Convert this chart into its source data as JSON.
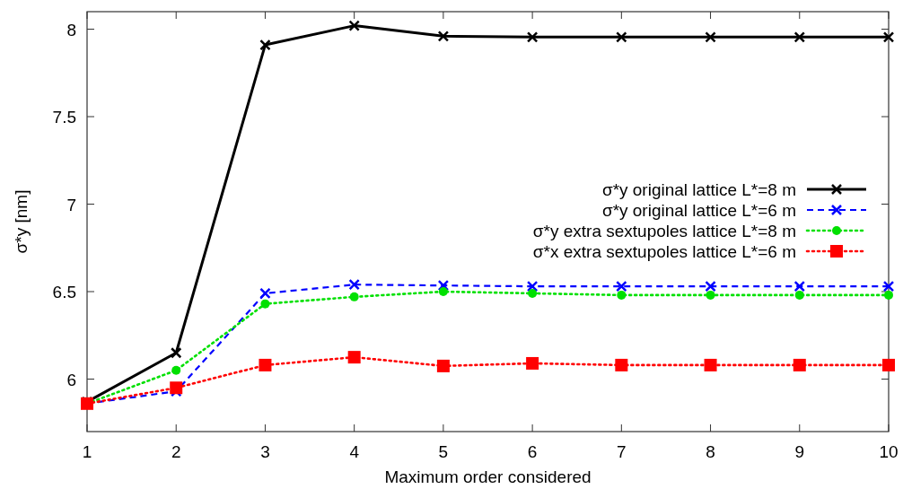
{
  "chart_data": {
    "type": "line",
    "xlabel": "Maximum order considered",
    "ylabel": "σ*y  [nm]",
    "x": [
      1,
      2,
      3,
      4,
      5,
      6,
      7,
      8,
      9,
      10
    ],
    "xlim": [
      1,
      10
    ],
    "xticks": [
      1,
      2,
      3,
      4,
      5,
      6,
      7,
      8,
      9,
      10
    ],
    "ylim": [
      5.7,
      8.1
    ],
    "yticks": [
      6,
      6.5,
      7,
      7.5,
      8
    ],
    "grid": false,
    "legend": "right",
    "series": [
      {
        "name": "σ*y original lattice L*=8 m",
        "color": "#000000",
        "marker": "cross",
        "line_style": "solid",
        "values": [
          5.87,
          6.15,
          7.91,
          8.02,
          7.96,
          7.955,
          7.955,
          7.955,
          7.955,
          7.955
        ]
      },
      {
        "name": "σ*y original lattice L*=6 m",
        "color": "#0000ff",
        "marker": "cross",
        "line_style": "dashed",
        "values": [
          5.86,
          5.93,
          6.49,
          6.54,
          6.535,
          6.53,
          6.53,
          6.53,
          6.53,
          6.53
        ]
      },
      {
        "name": "σ*y extra sextupoles lattice L*=8 m",
        "color": "#00e000",
        "marker": "circle",
        "line_style": "dotted",
        "values": [
          5.86,
          6.05,
          6.43,
          6.47,
          6.5,
          6.49,
          6.48,
          6.48,
          6.48,
          6.48
        ]
      },
      {
        "name": "σ*x extra sextupoles lattice L*=6 m",
        "color": "#ff0000",
        "marker": "square",
        "line_style": "dotted",
        "values": [
          5.86,
          5.95,
          6.08,
          6.125,
          6.075,
          6.09,
          6.08,
          6.08,
          6.08,
          6.08
        ]
      }
    ]
  }
}
